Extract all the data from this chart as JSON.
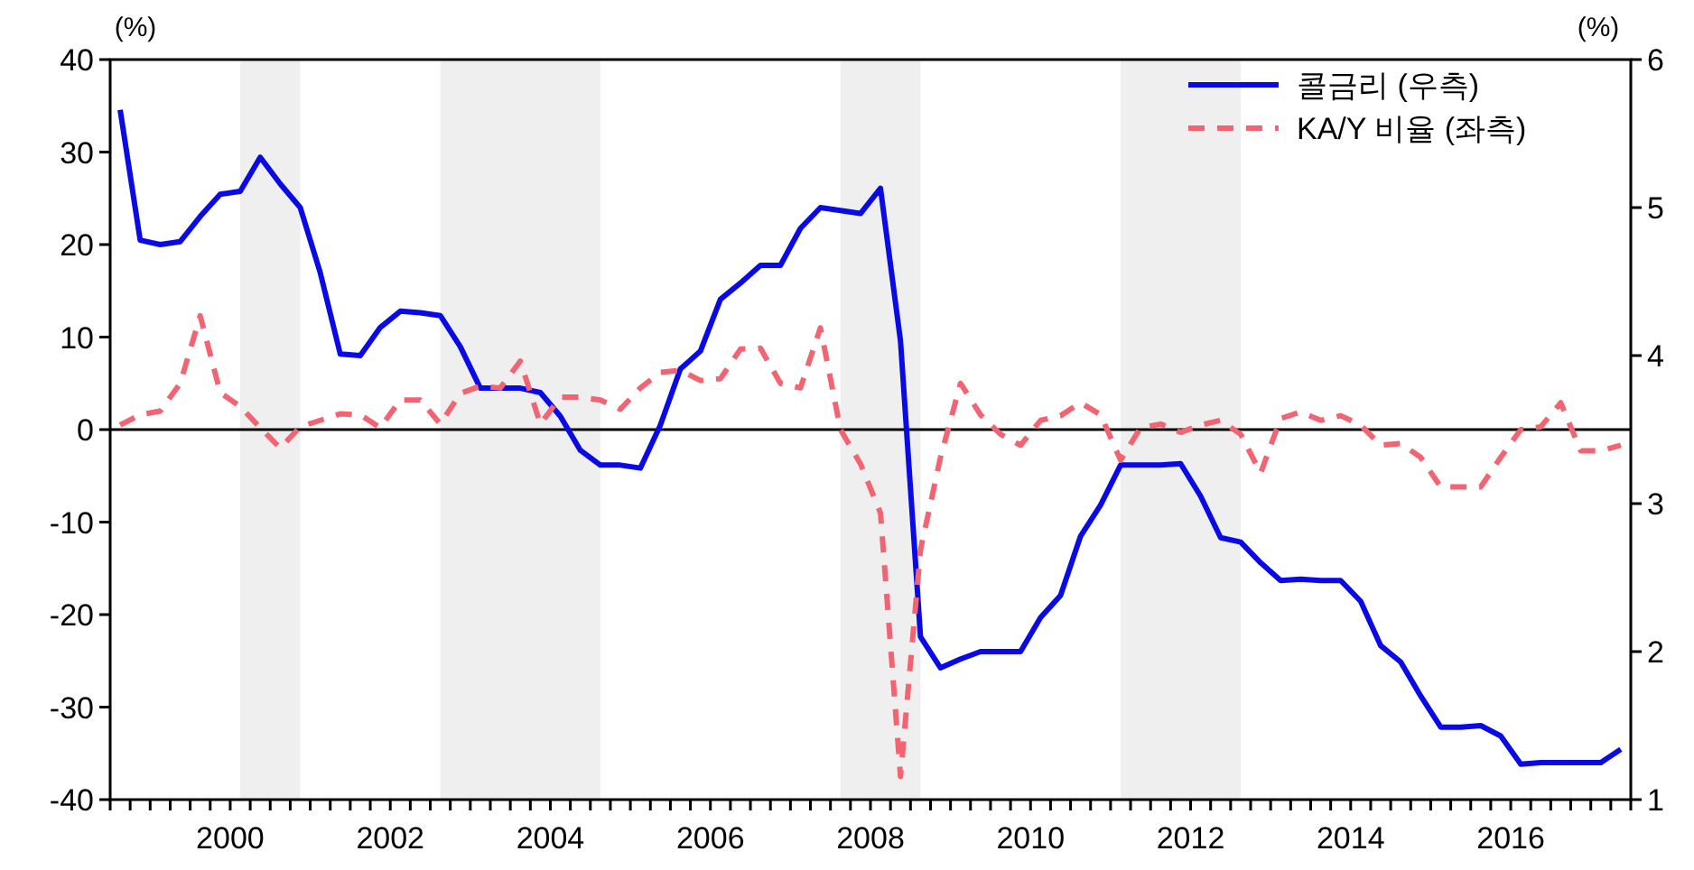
{
  "chart_data": {
    "type": "line",
    "ylabel": "(%)",
    "y2label": "(%)",
    "xlim": [
      1999,
      2018
    ],
    "ylim": [
      -40,
      40
    ],
    "yticks": [
      -40,
      -30,
      -20,
      -10,
      0,
      10,
      20,
      30,
      40
    ],
    "y2lim": [
      1,
      6
    ],
    "y2ticks": [
      1,
      2,
      3,
      4,
      5,
      6
    ],
    "xticks": [
      {
        "value": 1999,
        "label": null
      },
      {
        "value": 1999.25,
        "label": null
      },
      {
        "value": 1999.5,
        "label": null
      },
      {
        "value": 1999.75,
        "label": null
      },
      {
        "value": 2000,
        "label": null
      },
      {
        "value": 2000.25,
        "label": null
      },
      {
        "value": 2000.5,
        "label": "2000"
      },
      {
        "value": 2000.75,
        "label": null
      },
      {
        "value": 2001,
        "label": null
      },
      {
        "value": 2001.25,
        "label": null
      },
      {
        "value": 2001.5,
        "label": null
      },
      {
        "value": 2001.75,
        "label": null
      },
      {
        "value": 2002,
        "label": null
      },
      {
        "value": 2002.25,
        "label": null
      },
      {
        "value": 2002.5,
        "label": "2002"
      },
      {
        "value": 2002.75,
        "label": null
      },
      {
        "value": 2003,
        "label": null
      },
      {
        "value": 2003.25,
        "label": null
      },
      {
        "value": 2003.5,
        "label": null
      },
      {
        "value": 2003.75,
        "label": null
      },
      {
        "value": 2004,
        "label": null
      },
      {
        "value": 2004.25,
        "label": null
      },
      {
        "value": 2004.5,
        "label": "2004"
      },
      {
        "value": 2004.75,
        "label": null
      },
      {
        "value": 2005,
        "label": null
      },
      {
        "value": 2005.25,
        "label": null
      },
      {
        "value": 2005.5,
        "label": null
      },
      {
        "value": 2005.75,
        "label": null
      },
      {
        "value": 2006,
        "label": null
      },
      {
        "value": 2006.25,
        "label": null
      },
      {
        "value": 2006.5,
        "label": "2006"
      },
      {
        "value": 2006.75,
        "label": null
      },
      {
        "value": 2007,
        "label": null
      },
      {
        "value": 2007.25,
        "label": null
      },
      {
        "value": 2007.5,
        "label": null
      },
      {
        "value": 2007.75,
        "label": null
      },
      {
        "value": 2008,
        "label": null
      },
      {
        "value": 2008.25,
        "label": null
      },
      {
        "value": 2008.5,
        "label": "2008"
      },
      {
        "value": 2008.75,
        "label": null
      },
      {
        "value": 2009,
        "label": null
      },
      {
        "value": 2009.25,
        "label": null
      },
      {
        "value": 2009.5,
        "label": null
      },
      {
        "value": 2009.75,
        "label": null
      },
      {
        "value": 2010,
        "label": null
      },
      {
        "value": 2010.25,
        "label": null
      },
      {
        "value": 2010.5,
        "label": "2010"
      },
      {
        "value": 2010.75,
        "label": null
      },
      {
        "value": 2011,
        "label": null
      },
      {
        "value": 2011.25,
        "label": null
      },
      {
        "value": 2011.5,
        "label": null
      },
      {
        "value": 2011.75,
        "label": null
      },
      {
        "value": 2012,
        "label": null
      },
      {
        "value": 2012.25,
        "label": null
      },
      {
        "value": 2012.5,
        "label": "2012"
      },
      {
        "value": 2012.75,
        "label": null
      },
      {
        "value": 2013,
        "label": null
      },
      {
        "value": 2013.25,
        "label": null
      },
      {
        "value": 2013.5,
        "label": null
      },
      {
        "value": 2013.75,
        "label": null
      },
      {
        "value": 2014,
        "label": null
      },
      {
        "value": 2014.25,
        "label": null
      },
      {
        "value": 2014.5,
        "label": "2014"
      },
      {
        "value": 2014.75,
        "label": null
      },
      {
        "value": 2015,
        "label": null
      },
      {
        "value": 2015.25,
        "label": null
      },
      {
        "value": 2015.5,
        "label": null
      },
      {
        "value": 2015.75,
        "label": null
      },
      {
        "value": 2016,
        "label": null
      },
      {
        "value": 2016.25,
        "label": null
      },
      {
        "value": 2016.5,
        "label": "2016"
      },
      {
        "value": 2016.75,
        "label": null
      },
      {
        "value": 2017,
        "label": null
      },
      {
        "value": 2017.25,
        "label": null
      },
      {
        "value": 2017.5,
        "label": null
      },
      {
        "value": 2017.75,
        "label": null
      },
      {
        "value": 2018,
        "label": null
      }
    ],
    "x": [
      1999.125,
      1999.375,
      1999.625,
      1999.875,
      2000.125,
      2000.375,
      2000.625,
      2000.875,
      2001.125,
      2001.375,
      2001.625,
      2001.875,
      2002.125,
      2002.375,
      2002.625,
      2002.875,
      2003.125,
      2003.375,
      2003.625,
      2003.875,
      2004.125,
      2004.375,
      2004.625,
      2004.875,
      2005.125,
      2005.375,
      2005.625,
      2005.875,
      2006.125,
      2006.375,
      2006.625,
      2006.875,
      2007.125,
      2007.375,
      2007.625,
      2007.875,
      2008.125,
      2008.375,
      2008.625,
      2008.875,
      2009.125,
      2009.375,
      2009.625,
      2009.875,
      2010.125,
      2010.375,
      2010.625,
      2010.875,
      2011.125,
      2011.375,
      2011.625,
      2011.875,
      2012.125,
      2012.375,
      2012.625,
      2012.875,
      2013.125,
      2013.375,
      2013.625,
      2013.875,
      2014.125,
      2014.375,
      2014.625,
      2014.875,
      2015.125,
      2015.375,
      2015.625,
      2015.875,
      2016.125,
      2016.375,
      2016.625,
      2016.875,
      2017.125,
      2017.375,
      2017.625,
      2017.875
    ],
    "series": [
      {
        "name": "콜금리 (우측)",
        "color": "#0a0ae6",
        "axis": "y2",
        "line_style": "solid",
        "values": [
          5.66,
          4.78,
          4.75,
          4.77,
          4.94,
          5.09,
          5.11,
          5.34,
          5.16,
          5.0,
          4.56,
          4.01,
          4.0,
          4.19,
          4.3,
          4.29,
          4.27,
          4.06,
          3.78,
          3.78,
          3.78,
          3.75,
          3.59,
          3.36,
          3.26,
          3.26,
          3.24,
          3.53,
          3.91,
          4.03,
          4.38,
          4.49,
          4.61,
          4.61,
          4.86,
          5.0,
          4.98,
          4.96,
          5.13,
          4.1,
          2.1,
          1.89,
          1.95,
          2.0,
          2.0,
          2.0,
          2.23,
          2.38,
          2.78,
          2.99,
          3.26,
          3.26,
          3.26,
          3.27,
          3.05,
          2.77,
          2.74,
          2.6,
          2.48,
          2.49,
          2.48,
          2.48,
          2.34,
          2.04,
          1.93,
          1.7,
          1.49,
          1.49,
          1.5,
          1.43,
          1.24,
          1.25,
          1.25,
          1.25,
          1.25,
          1.34
        ]
      },
      {
        "name": "KA/Y 비율 (좌측)",
        "color": "#f26472",
        "line_style": "dashed",
        "values": [
          0.5,
          1.6,
          2,
          5,
          12.3,
          4,
          2.5,
          0.2,
          -2,
          0.3,
          1,
          1.7,
          1.6,
          0.2,
          3.2,
          3.2,
          0.6,
          3.9,
          4.7,
          4.5,
          7.4,
          0.6,
          3.5,
          3.5,
          3.2,
          2.2,
          4.5,
          6.2,
          6.4,
          5.3,
          5.5,
          8.7,
          8.8,
          5,
          4.5,
          11,
          0,
          -3.7,
          -9,
          -37.5,
          -13,
          -3,
          5,
          1.6,
          -0.5,
          -1.7,
          1,
          1.5,
          2.9,
          1.6,
          -3.3,
          0.2,
          0.6,
          -0.3,
          0.5,
          1,
          -0.5,
          -4.7,
          1.2,
          1.9,
          1,
          1.5,
          0.5,
          -1.7,
          -1.5,
          -3,
          -6.2,
          -6.2,
          -6.2,
          -3,
          0,
          0.3,
          2.9,
          -2.3,
          -2.3,
          -1.7
        ]
      }
    ],
    "ref_lines": [
      {
        "axis": "y",
        "value": 0,
        "color": "#000000"
      }
    ],
    "bands": [
      {
        "axis": "x",
        "from": 2000.625,
        "to": 2001.375,
        "color": "#efefef"
      },
      {
        "axis": "x",
        "from": 2003.125,
        "to": 2005.125,
        "color": "#efefef"
      },
      {
        "axis": "x",
        "from": 2008.125,
        "to": 2009.125,
        "color": "#efefef"
      },
      {
        "axis": "x",
        "from": 2011.625,
        "to": 2013.125,
        "color": "#efefef"
      }
    ],
    "grid": false,
    "legend": "top right"
  }
}
